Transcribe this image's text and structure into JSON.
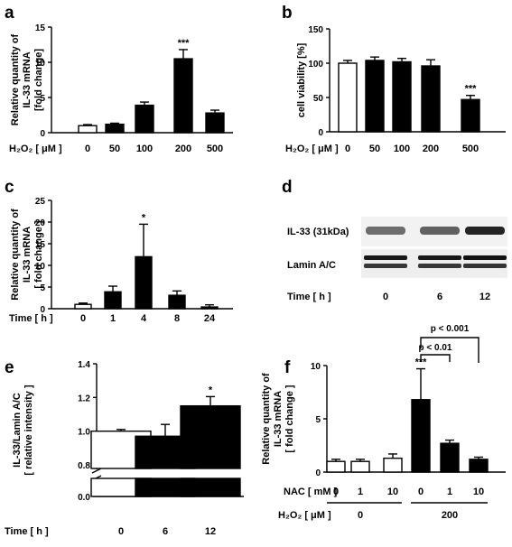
{
  "chart_data": [
    {
      "panel": "a",
      "type": "bar",
      "ylabel": [
        "Relative quantity of",
        "IL-33 mRNA",
        "[fold change]"
      ],
      "xlabel": "H₂O₂ [ μM ]",
      "categories": [
        "0",
        "50",
        "100",
        "200",
        "500"
      ],
      "values": [
        1.0,
        1.2,
        3.9,
        10.5,
        2.8
      ],
      "errors": [
        0.15,
        0.15,
        0.45,
        1.3,
        0.4
      ],
      "fills": [
        "white",
        "black",
        "black",
        "black",
        "black"
      ],
      "annotations": [
        "",
        "",
        "",
        "***",
        ""
      ],
      "ylim": [
        0,
        15
      ],
      "yticks": [
        0,
        5,
        10,
        15
      ]
    },
    {
      "panel": "b",
      "type": "bar",
      "ylabel": [
        "cell viability [%]"
      ],
      "xlabel": "H₂O₂ [ μM ]",
      "categories": [
        "0",
        "50",
        "100",
        "200",
        "500"
      ],
      "values": [
        100,
        104,
        102,
        96,
        47
      ],
      "errors": [
        4,
        5,
        5,
        9,
        6
      ],
      "fills": [
        "white",
        "black",
        "black",
        "black",
        "black"
      ],
      "annotations": [
        "",
        "",
        "",
        "",
        "***"
      ],
      "ylim": [
        0,
        150
      ],
      "yticks": [
        0,
        50,
        100,
        150
      ]
    },
    {
      "panel": "c",
      "type": "bar",
      "ylabel": [
        "Relative quantity of",
        "IL-33 mRNA",
        "[ fold change ]"
      ],
      "xlabel": "Time [ h ]",
      "categories": [
        "0",
        "1",
        "4",
        "8",
        "24"
      ],
      "values": [
        1.0,
        3.9,
        12.0,
        3.1,
        0.4
      ],
      "errors": [
        0.3,
        1.3,
        7.5,
        1.0,
        0.5
      ],
      "fills": [
        "white",
        "black",
        "black",
        "black",
        "black"
      ],
      "annotations": [
        "",
        "",
        "*",
        "",
        ""
      ],
      "ylim": [
        0,
        25
      ],
      "yticks": [
        0,
        5,
        10,
        15,
        20,
        25
      ]
    },
    {
      "panel": "e",
      "type": "bar",
      "ylabel": [
        "IL-33/Lamin A/C",
        "[ relative intensity ]"
      ],
      "xlabel": "Time [ h ]",
      "categories": [
        "0",
        "6",
        "12"
      ],
      "values": [
        1.0,
        0.97,
        1.15
      ],
      "errors": [
        0.01,
        0.07,
        0.055
      ],
      "fills": [
        "white",
        "black",
        "black"
      ],
      "annotations": [
        "",
        "",
        "*"
      ],
      "ylim": [
        0.8,
        1.4
      ],
      "yticks": [
        0.0,
        0.8,
        1.0,
        1.2,
        1.4
      ],
      "axis_break": true
    },
    {
      "panel": "f",
      "type": "bar",
      "ylabel": [
        "Relative quantity of",
        "IL-33 mRNA",
        "[ fold change ]"
      ],
      "categories": [
        "0",
        "1",
        "10",
        "0",
        "1",
        "10"
      ],
      "values": [
        1.0,
        1.0,
        1.3,
        6.8,
        2.7,
        1.2
      ],
      "errors": [
        0.2,
        0.2,
        0.4,
        2.9,
        0.3,
        0.2
      ],
      "fills": [
        "white",
        "white",
        "white",
        "black",
        "black",
        "black"
      ],
      "annotations": [
        "",
        "",
        "",
        "***",
        "",
        ""
      ],
      "ylim": [
        0,
        10
      ],
      "yticks": [
        0,
        5,
        10
      ],
      "row_labels": [
        "NAC [ mM ]",
        "H₂O₂ [ μM ]"
      ],
      "groups": [
        "0",
        "200"
      ],
      "brackets": [
        "p < 0.01",
        "p < 0.001"
      ]
    }
  ],
  "blot": {
    "panel": "d",
    "rows": [
      "IL-33 (31kDa)",
      "Lamin A/C"
    ],
    "xlabel": "Time [ h ]",
    "lanes": [
      "0",
      "6",
      "12"
    ],
    "band_intensity": {
      "il33": [
        0.55,
        0.6,
        0.85
      ],
      "lamin": [
        0.9,
        0.9,
        0.92
      ]
    }
  },
  "panel_letters": [
    "a",
    "b",
    "c",
    "d",
    "e",
    "f"
  ]
}
